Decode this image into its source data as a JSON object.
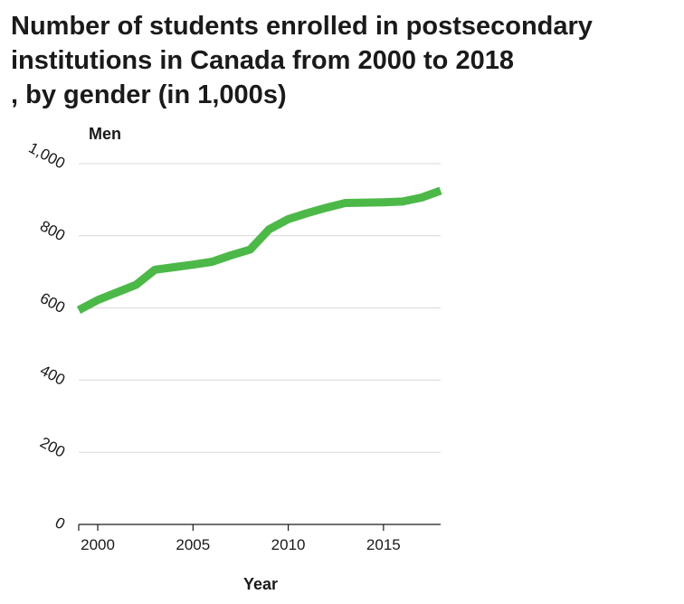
{
  "chart_data": {
    "type": "line",
    "title_lines": [
      "Number of students enrolled in postsecondary",
      "institutions in Canada from 2000 to 2018",
      ", by gender (in 1,000s)"
    ],
    "title": "Number of students enrolled in postsecondary institutions in Canada from 2000 to 2018 , by gender (in 1,000s)",
    "xlabel": "Year",
    "ylabel": "Men",
    "xlim": [
      1999,
      2018
    ],
    "ylim": [
      0,
      1000
    ],
    "x_ticks": [
      2000,
      2005,
      2010,
      2015
    ],
    "x_tick_labels": [
      "2000",
      "2005",
      "2010",
      "2015"
    ],
    "y_ticks": [
      0,
      200,
      400,
      600,
      800,
      1000
    ],
    "y_tick_labels": [
      "0",
      "200",
      "400",
      "600",
      "800",
      "1,000"
    ],
    "grid": true,
    "series": [
      {
        "name": "Men",
        "color": "#4cb848",
        "x": [
          1999,
          2000,
          2001,
          2002,
          2003,
          2004,
          2005,
          2006,
          2007,
          2008,
          2009,
          2010,
          2011,
          2012,
          2013,
          2014,
          2015,
          2016,
          2017,
          2018
        ],
        "values": [
          594,
          622,
          643,
          664,
          706,
          713,
          720,
          728,
          746,
          762,
          818,
          846,
          863,
          878,
          891,
          892,
          893,
          895,
          906,
          925
        ]
      }
    ]
  }
}
